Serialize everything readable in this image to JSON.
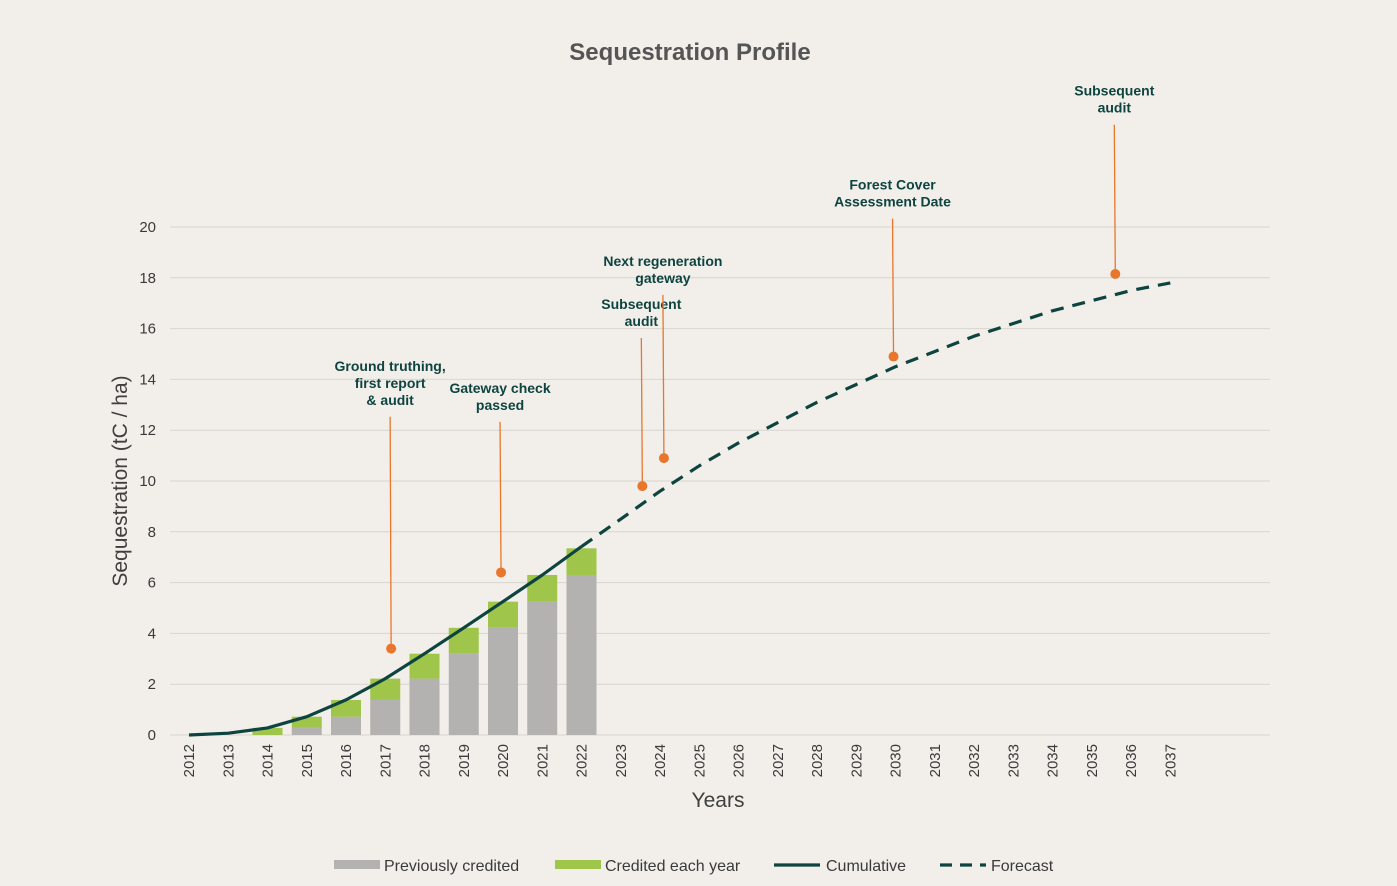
{
  "chart_data": {
    "type": "bar",
    "title": "Sequestration Profile",
    "xlabel": "Years",
    "ylabel": "Sequestration (tC / ha)",
    "ylim": [
      0,
      20
    ],
    "yticks": [
      0,
      2,
      4,
      6,
      8,
      10,
      12,
      14,
      16,
      18,
      20
    ],
    "grid": true,
    "legend_position": "bottom",
    "categories": [
      "2012",
      "2013",
      "2014",
      "2015",
      "2016",
      "2017",
      "2018",
      "2019",
      "2020",
      "2021",
      "2022",
      "2023",
      "2024",
      "2025",
      "2026",
      "2027",
      "2028",
      "2029",
      "2030",
      "2031",
      "2032",
      "2033",
      "2034",
      "2035",
      "2036",
      "2037"
    ],
    "series": [
      {
        "name": "Previously credited",
        "kind": "bar",
        "stack": "credit",
        "color": "#b3b2b0",
        "values": [
          0,
          0,
          0,
          0.28,
          0.72,
          1.38,
          2.22,
          3.2,
          4.22,
          5.25,
          6.3,
          null,
          null,
          null,
          null,
          null,
          null,
          null,
          null,
          null,
          null,
          null,
          null,
          null,
          null,
          null
        ]
      },
      {
        "name": "Credited each year",
        "kind": "bar",
        "stack": "credit",
        "color": "#9fc54a",
        "values": [
          0,
          0,
          0.28,
          0.44,
          0.66,
          0.84,
          0.98,
          1.02,
          1.03,
          1.05,
          1.05,
          null,
          null,
          null,
          null,
          null,
          null,
          null,
          null,
          null,
          null,
          null,
          null,
          null,
          null,
          null
        ]
      },
      {
        "name": "Cumulative",
        "kind": "line",
        "color": "#0e4440",
        "points": [
          [
            2012,
            0
          ],
          [
            2013,
            0.07
          ],
          [
            2014,
            0.28
          ],
          [
            2015,
            0.72
          ],
          [
            2016,
            1.38
          ],
          [
            2017,
            2.22
          ],
          [
            2018,
            3.2
          ],
          [
            2019,
            4.22
          ],
          [
            2020,
            5.25
          ],
          [
            2021,
            6.3
          ],
          [
            2022,
            7.42
          ]
        ]
      },
      {
        "name": "Forecast",
        "kind": "line",
        "dash": true,
        "color": "#0e4440",
        "points": [
          [
            2022,
            7.42
          ],
          [
            2023,
            8.5
          ],
          [
            2024,
            9.6
          ],
          [
            2025,
            10.6
          ],
          [
            2026,
            11.5
          ],
          [
            2027,
            12.3
          ],
          [
            2028,
            13.1
          ],
          [
            2029,
            13.8
          ],
          [
            2030,
            14.5
          ],
          [
            2031,
            15.1
          ],
          [
            2032,
            15.7
          ],
          [
            2033,
            16.2
          ],
          [
            2034,
            16.7
          ],
          [
            2035,
            17.1
          ],
          [
            2036,
            17.5
          ],
          [
            2037,
            17.8
          ]
        ]
      }
    ],
    "annotations": [
      {
        "lines": [
          "Ground truthing,",
          "first report",
          "& audit"
        ],
        "x": 2017.15,
        "y": 3.4,
        "label_y": 13.0,
        "color": "#e8762c"
      },
      {
        "lines": [
          "Gateway check",
          "passed"
        ],
        "x": 2019.95,
        "y": 6.4,
        "label_y": 12.8,
        "color": "#e8762c"
      },
      {
        "lines": [
          "Subsequent",
          "audit"
        ],
        "x": 2023.55,
        "y": 9.8,
        "label_y": 16.1,
        "color": "#e8762c"
      },
      {
        "lines": [
          "Next regeneration",
          "gateway"
        ],
        "x": 2024.1,
        "y": 10.9,
        "label_y": 17.8,
        "color": "#e8762c"
      },
      {
        "lines": [
          "Forest Cover",
          "Assessment Date"
        ],
        "x": 2029.95,
        "y": 14.9,
        "label_y": 20.8,
        "color": "#e8762c"
      },
      {
        "lines": [
          "Subsequent",
          "audit"
        ],
        "x": 2035.6,
        "y": 18.15,
        "label_y": 24.5,
        "color": "#e8762c"
      }
    ]
  }
}
